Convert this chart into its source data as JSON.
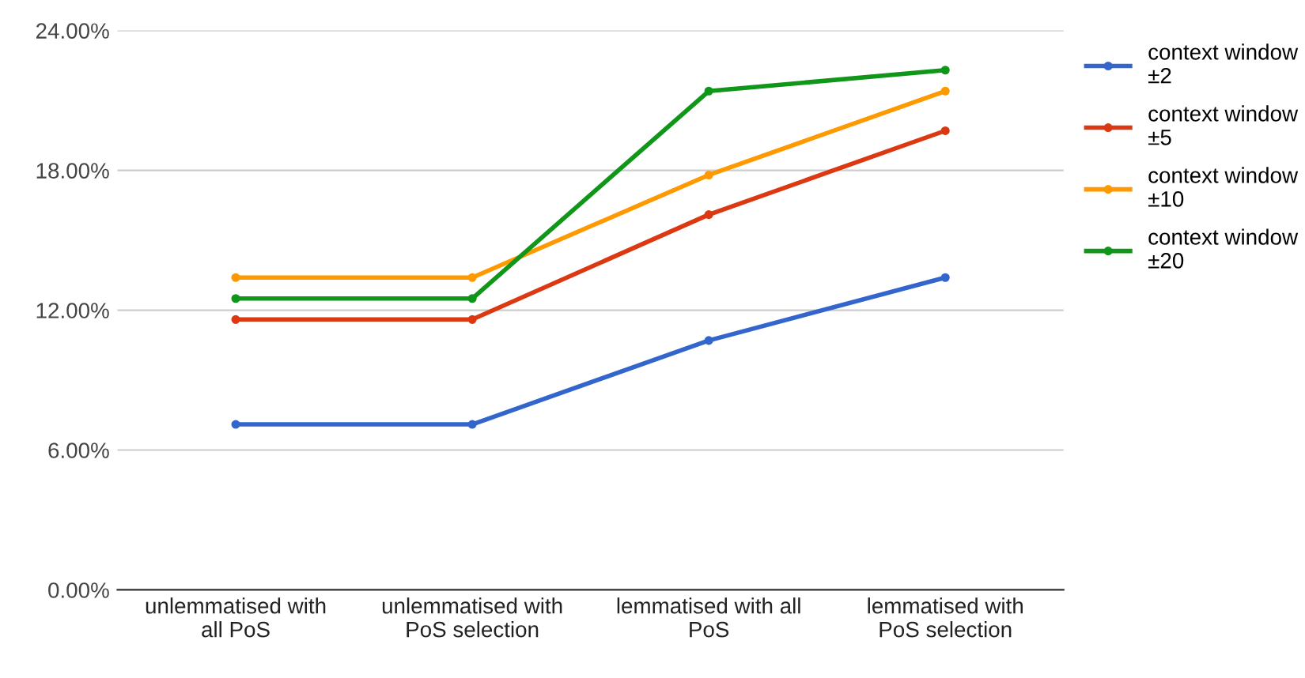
{
  "chart_data": {
    "type": "line",
    "categories": [
      "unlemmatised with\nall PoS",
      "unlemmatised with\nPoS selection",
      "lemmatised with all\nPoS",
      "lemmatised with\nPoS selection"
    ],
    "series": [
      {
        "name": "context window\n±2",
        "color": "#3366cc",
        "values": [
          7.1,
          7.1,
          10.7,
          13.4
        ]
      },
      {
        "name": "context window\n±5",
        "color": "#dc3912",
        "values": [
          11.6,
          11.6,
          16.1,
          19.7
        ]
      },
      {
        "name": "context window\n±10",
        "color": "#ff9900",
        "values": [
          13.4,
          13.4,
          17.8,
          21.4
        ]
      },
      {
        "name": "context window\n±20",
        "color": "#109618",
        "values": [
          12.5,
          12.5,
          21.4,
          22.3
        ]
      }
    ],
    "ylim": [
      0,
      24
    ],
    "yticks": [
      {
        "value": 0,
        "label": "0.00%"
      },
      {
        "value": 6,
        "label": "6.00%"
      },
      {
        "value": 12,
        "label": "12.00%"
      },
      {
        "value": 18,
        "label": "18.00%"
      },
      {
        "value": 24,
        "label": "24.00%"
      }
    ],
    "grid": "y",
    "legend": "right",
    "marker": "circle",
    "line_style": "solid"
  }
}
